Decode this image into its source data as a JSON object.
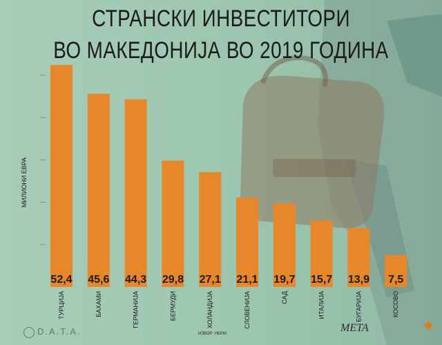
{
  "header": {
    "title_line1": "СТРАНСКИ ИНВЕСТИТОРИ",
    "title_line2": "ВО МАКЕДОНИЈА ВО 2019 ГОДИНА"
  },
  "footer": {
    "logo_text": "D.A.T.A.",
    "source": "ИЗВОР: НБРМ",
    "brand": "META"
  },
  "colors": {
    "bar": "#e8862a",
    "background": "#9cc6b0"
  },
  "chart_data": {
    "type": "bar",
    "title": "СТРАНСКИ ИНВЕСТИТОРИ ВО МАКЕДОНИЈА ВО 2019 ГОДИНА",
    "ylabel": "МИЛИОНИ ЕВРА",
    "xlabel": "",
    "categories": [
      "ТУРЦИЈА",
      "БАХАМИ",
      "ГЕРМАНИЈА",
      "БЕРМУДИ",
      "ХОЛАНДИЈА",
      "СЛОВЕНИЈА",
      "САД",
      "ИТАЛИЈА",
      "БУГАРИЈА",
      "КОСОВО"
    ],
    "values": [
      52.4,
      45.6,
      44.3,
      29.8,
      27.1,
      21.1,
      19.7,
      15.7,
      13.9,
      7.5
    ],
    "value_labels": [
      "52,4",
      "45,6",
      "44,3",
      "29,8",
      "27,1",
      "21,1",
      "19,7",
      "15,7",
      "13,9",
      "7,5"
    ],
    "ylim": [
      0,
      55
    ],
    "grid": false
  }
}
